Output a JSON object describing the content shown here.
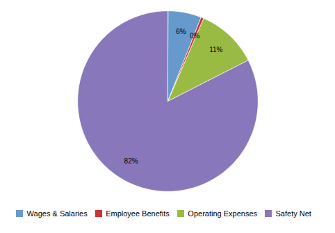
{
  "chart_data": {
    "type": "pie",
    "categories": [
      "Wages & Salaries",
      "Employee Benefits",
      "Operating Expenses",
      "Safety Net"
    ],
    "values": [
      6,
      0.5,
      11,
      82.5
    ],
    "value_labels": [
      "6%",
      "0%",
      "11%",
      "82%"
    ],
    "colors": [
      "#6699cc",
      "#cc3333",
      "#99bb44",
      "#8877bb"
    ],
    "data_labels": true,
    "legend": "bottom"
  }
}
